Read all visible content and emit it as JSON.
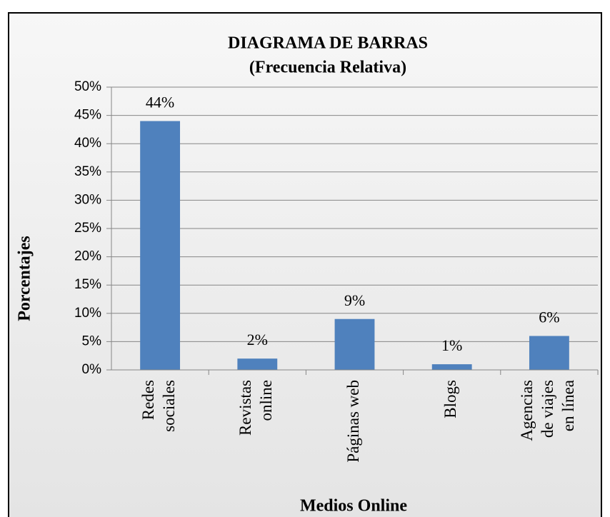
{
  "chart_data": {
    "type": "bar",
    "title": [
      "DIAGRAMA DE BARRAS",
      "(Frecuencia Relativa)"
    ],
    "x_label": "Medios Online",
    "y_label": "Porcentajes",
    "categories": [
      [
        "Redes",
        "sociales"
      ],
      [
        "Revistas",
        "online"
      ],
      [
        "Páginas web"
      ],
      [
        "Blogs"
      ],
      [
        "Agencias",
        "de viajes",
        "en línea"
      ]
    ],
    "values": [
      44,
      2,
      9,
      1,
      6
    ],
    "value_labels": [
      "44%",
      "2%",
      "9%",
      "1%",
      "6%"
    ],
    "color": "#4f81bd",
    "ylim": [
      0,
      50
    ],
    "yticks": [
      {
        "value": 0,
        "label": "0%"
      },
      {
        "value": 5,
        "label": "5%"
      },
      {
        "value": 10,
        "label": "10%"
      },
      {
        "value": 15,
        "label": "15%"
      },
      {
        "value": 20,
        "label": "20%"
      },
      {
        "value": 25,
        "label": "25%"
      },
      {
        "value": 30,
        "label": "30%"
      },
      {
        "value": 35,
        "label": "35%"
      },
      {
        "value": 40,
        "label": "40%"
      },
      {
        "value": 45,
        "label": "45%"
      },
      {
        "value": 50,
        "label": "50%"
      }
    ],
    "grid": true
  }
}
